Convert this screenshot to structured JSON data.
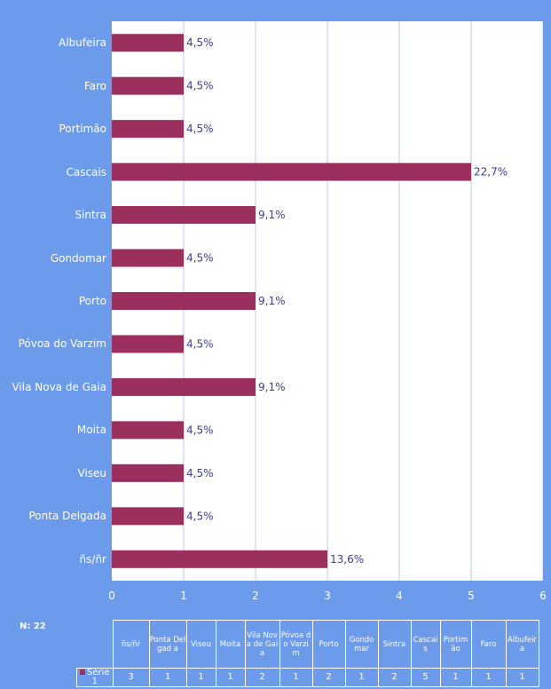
{
  "chart_data": {
    "type": "bar",
    "orientation": "horizontal",
    "categories": [
      "Albufeira",
      "Faro",
      "Portimão",
      "Cascais",
      "Sintra",
      "Gondomar",
      "Porto",
      "Póvoa do Varzim",
      "Vila Nova de Gaia",
      "Moita",
      "Viseu",
      "Ponta Delgada",
      "ñs/ñr"
    ],
    "values": [
      1,
      1,
      1,
      5,
      2,
      1,
      2,
      1,
      2,
      1,
      1,
      1,
      3
    ],
    "data_labels": [
      "4,5%",
      "4,5%",
      "4,5%",
      "22,7%",
      "9,1%",
      "4,5%",
      "9,1%",
      "4,5%",
      "9,1%",
      "4,5%",
      "4,5%",
      "4,5%",
      "13,6%"
    ],
    "xlim": [
      0,
      6
    ],
    "x_ticks": [
      "0",
      "1",
      "2",
      "3",
      "4",
      "5",
      "6"
    ],
    "grid": "vertical",
    "series": [
      {
        "name": "Série1",
        "values": [
          3,
          1,
          1,
          1,
          2,
          1,
          2,
          1,
          2,
          5,
          1,
          1,
          1
        ]
      }
    ],
    "colors": {
      "bar": "#9b2f5e",
      "background": "#6b9bea",
      "plot_area": "#ffffff",
      "gridline": "#b7cbee"
    }
  },
  "table": {
    "categories": [
      "ñs/ñr",
      "Ponta Delgada",
      "Viseu",
      "Moita",
      "Vila Nova de Gaia",
      "Póvoa do Varzim",
      "Porto",
      "Gondomar",
      "Sintra",
      "Cascais",
      "Portimão",
      "Faro",
      "Albufeira"
    ],
    "header_display": [
      "ñs/ñr",
      "Ponta Delgad a",
      "Viseu",
      "Moita",
      "Vila Nova de Gaia",
      "Póvoa do Varzim",
      "Porto",
      "Gondo mar",
      "Sintra",
      "Cascai s",
      "Portim ão",
      "Faro",
      "Albufeir a"
    ],
    "series_name": "Série1",
    "values": [
      "3",
      "1",
      "1",
      "1",
      "2",
      "1",
      "2",
      "1",
      "2",
      "5",
      "1",
      "1",
      "1"
    ]
  },
  "note": "N: 22"
}
